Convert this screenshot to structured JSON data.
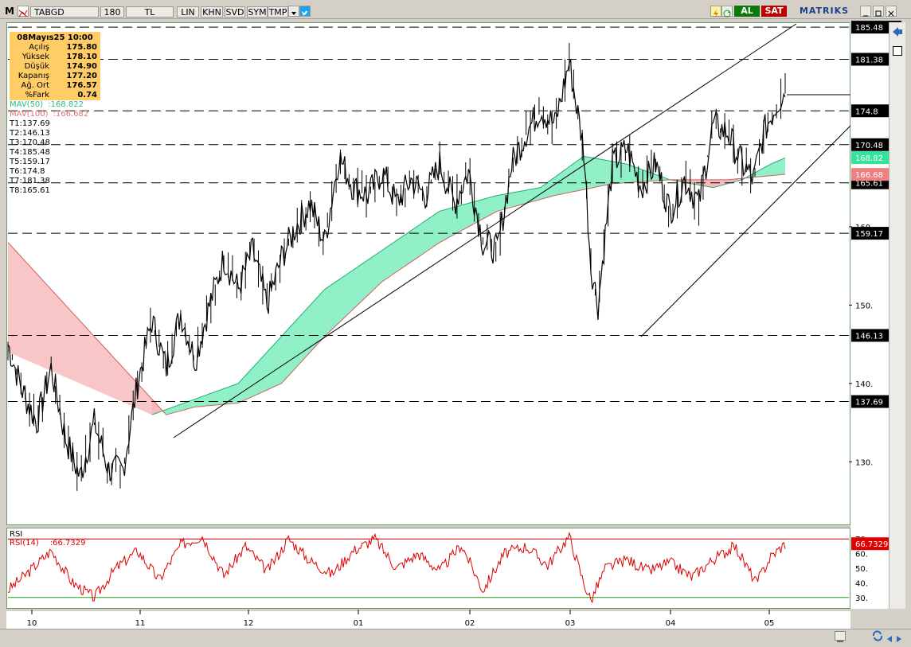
{
  "toolbar": {
    "app_icon": "M",
    "symbol": "TABGD",
    "period": "180",
    "currency": "TL",
    "buttons": [
      "LIN",
      "KHN",
      "SVD",
      "SYM",
      "TMP"
    ],
    "buy": "AL",
    "sell": "SAT",
    "brand": "MATRIKS",
    "colors": {
      "buy": "#00a000",
      "sell": "#d00000",
      "brand": "#1c3f8a"
    }
  },
  "info": {
    "date": "08Mayıs25 10:00",
    "rows": [
      {
        "label": "Açılış",
        "value": "175.80"
      },
      {
        "label": "Yüksek",
        "value": "178.10"
      },
      {
        "label": "Düşük",
        "value": "174.90"
      },
      {
        "label": "Kapanış",
        "value": "177.20"
      },
      {
        "label": "Ağ. Ort",
        "value": "176.57"
      },
      {
        "label": "%Fark",
        "value": "0.74"
      }
    ]
  },
  "indicators": {
    "mav50_label": "MAV(50)",
    "mav50_value": ":168.822",
    "mav100_label": "MAV(100)",
    "mav100_value": ":166.682"
  },
  "levels": [
    {
      "name": "T1",
      "value": "137.69"
    },
    {
      "name": "T2",
      "value": "146.13"
    },
    {
      "name": "T3",
      "value": "170.48"
    },
    {
      "name": "T4",
      "value": "185.48"
    },
    {
      "name": "T5",
      "value": "159.17"
    },
    {
      "name": "T6",
      "value": "174.8"
    },
    {
      "name": "T7",
      "value": "181.38"
    },
    {
      "name": "T8",
      "value": "165.61"
    }
  ],
  "chart_data": {
    "type": "line",
    "price_range": [
      122,
      186
    ],
    "y_ticks": [
      "130.",
      "140.",
      "150.",
      "160."
    ],
    "x_labels": [
      "10",
      "11",
      "12",
      "01",
      "02",
      "03",
      "04",
      "05"
    ],
    "colors": {
      "price": "#000000",
      "mav50": "#33e399",
      "mav100": "#f08080",
      "rsi": "#dd0000"
    },
    "price_series": [
      {
        "i": 0,
        "price": 145
      },
      {
        "i": 10,
        "price": 139
      },
      {
        "i": 20,
        "price": 135
      },
      {
        "i": 30,
        "price": 142
      },
      {
        "i": 40,
        "price": 133
      },
      {
        "i": 50,
        "price": 128
      },
      {
        "i": 60,
        "price": 135
      },
      {
        "i": 70,
        "price": 129
      },
      {
        "i": 80,
        "price": 129
      },
      {
        "i": 90,
        "price": 140
      },
      {
        "i": 100,
        "price": 148
      },
      {
        "i": 110,
        "price": 142
      },
      {
        "i": 120,
        "price": 149
      },
      {
        "i": 130,
        "price": 143
      },
      {
        "i": 140,
        "price": 150
      },
      {
        "i": 150,
        "price": 156
      },
      {
        "i": 160,
        "price": 152
      },
      {
        "i": 170,
        "price": 157
      },
      {
        "i": 180,
        "price": 150
      },
      {
        "i": 190,
        "price": 156
      },
      {
        "i": 200,
        "price": 160
      },
      {
        "i": 210,
        "price": 163
      },
      {
        "i": 220,
        "price": 158
      },
      {
        "i": 230,
        "price": 169
      },
      {
        "i": 240,
        "price": 165
      },
      {
        "i": 250,
        "price": 164
      },
      {
        "i": 260,
        "price": 167
      },
      {
        "i": 270,
        "price": 163
      },
      {
        "i": 280,
        "price": 166
      },
      {
        "i": 290,
        "price": 164
      },
      {
        "i": 300,
        "price": 168
      },
      {
        "i": 310,
        "price": 163
      },
      {
        "i": 320,
        "price": 167
      },
      {
        "i": 330,
        "price": 158
      },
      {
        "i": 340,
        "price": 157
      },
      {
        "i": 350,
        "price": 168
      },
      {
        "i": 360,
        "price": 172
      },
      {
        "i": 370,
        "price": 175
      },
      {
        "i": 380,
        "price": 173
      },
      {
        "i": 390,
        "price": 181
      },
      {
        "i": 400,
        "price": 170
      },
      {
        "i": 405,
        "price": 155
      },
      {
        "i": 410,
        "price": 150
      },
      {
        "i": 420,
        "price": 168
      },
      {
        "i": 430,
        "price": 170
      },
      {
        "i": 440,
        "price": 165
      },
      {
        "i": 450,
        "price": 168
      },
      {
        "i": 460,
        "price": 162
      },
      {
        "i": 470,
        "price": 166
      },
      {
        "i": 480,
        "price": 163
      },
      {
        "i": 490,
        "price": 173
      },
      {
        "i": 500,
        "price": 172
      },
      {
        "i": 510,
        "price": 168
      },
      {
        "i": 518,
        "price": 166
      },
      {
        "i": 525,
        "price": 172
      },
      {
        "i": 535,
        "price": 176
      },
      {
        "i": 540,
        "price": 177.2
      }
    ],
    "mav50_series": [
      {
        "i": 100,
        "v": 136
      },
      {
        "i": 130,
        "v": 138
      },
      {
        "i": 160,
        "v": 140
      },
      {
        "i": 190,
        "v": 146
      },
      {
        "i": 220,
        "v": 152
      },
      {
        "i": 260,
        "v": 157
      },
      {
        "i": 300,
        "v": 162
      },
      {
        "i": 340,
        "v": 164
      },
      {
        "i": 370,
        "v": 165
      },
      {
        "i": 400,
        "v": 169
      },
      {
        "i": 430,
        "v": 168
      },
      {
        "i": 460,
        "v": 166
      },
      {
        "i": 490,
        "v": 165
      },
      {
        "i": 510,
        "v": 166
      },
      {
        "i": 530,
        "v": 168
      },
      {
        "i": 540,
        "v": 168.8
      }
    ],
    "mav100_series": [
      {
        "i": 0,
        "v": 158
      },
      {
        "i": 30,
        "v": 152
      },
      {
        "i": 60,
        "v": 146
      },
      {
        "i": 90,
        "v": 140
      },
      {
        "i": 110,
        "v": 136
      },
      {
        "i": 130,
        "v": 137
      },
      {
        "i": 160,
        "v": 137.5
      },
      {
        "i": 190,
        "v": 140
      },
      {
        "i": 220,
        "v": 146
      },
      {
        "i": 260,
        "v": 153
      },
      {
        "i": 300,
        "v": 158
      },
      {
        "i": 340,
        "v": 162
      },
      {
        "i": 380,
        "v": 164
      },
      {
        "i": 420,
        "v": 165.5
      },
      {
        "i": 460,
        "v": 166
      },
      {
        "i": 500,
        "v": 166
      },
      {
        "i": 540,
        "v": 166.7
      }
    ],
    "rsi": {
      "label": "RSI",
      "label2": "RSI(14)",
      "value_label": ":66.7329",
      "value": 66.7329,
      "range": [
        25,
        75
      ],
      "upper": 70,
      "lower": 30,
      "ticks": [
        "70.",
        "60.",
        "50.",
        "40.",
        "30."
      ],
      "series": [
        {
          "i": 0,
          "v": 35
        },
        {
          "i": 15,
          "v": 48
        },
        {
          "i": 30,
          "v": 62
        },
        {
          "i": 45,
          "v": 40
        },
        {
          "i": 60,
          "v": 30
        },
        {
          "i": 75,
          "v": 50
        },
        {
          "i": 90,
          "v": 62
        },
        {
          "i": 105,
          "v": 42
        },
        {
          "i": 120,
          "v": 66
        },
        {
          "i": 135,
          "v": 72
        },
        {
          "i": 150,
          "v": 45
        },
        {
          "i": 165,
          "v": 65
        },
        {
          "i": 180,
          "v": 48
        },
        {
          "i": 195,
          "v": 70
        },
        {
          "i": 210,
          "v": 55
        },
        {
          "i": 225,
          "v": 46
        },
        {
          "i": 240,
          "v": 62
        },
        {
          "i": 255,
          "v": 70
        },
        {
          "i": 270,
          "v": 50
        },
        {
          "i": 285,
          "v": 60
        },
        {
          "i": 300,
          "v": 48
        },
        {
          "i": 315,
          "v": 66
        },
        {
          "i": 330,
          "v": 35
        },
        {
          "i": 345,
          "v": 60
        },
        {
          "i": 360,
          "v": 65
        },
        {
          "i": 375,
          "v": 52
        },
        {
          "i": 390,
          "v": 72
        },
        {
          "i": 400,
          "v": 40
        },
        {
          "i": 405,
          "v": 28
        },
        {
          "i": 415,
          "v": 50
        },
        {
          "i": 430,
          "v": 56
        },
        {
          "i": 445,
          "v": 48
        },
        {
          "i": 460,
          "v": 54
        },
        {
          "i": 475,
          "v": 44
        },
        {
          "i": 490,
          "v": 56
        },
        {
          "i": 505,
          "v": 65
        },
        {
          "i": 520,
          "v": 40
        },
        {
          "i": 530,
          "v": 58
        },
        {
          "i": 540,
          "v": 66.7329
        }
      ]
    }
  }
}
